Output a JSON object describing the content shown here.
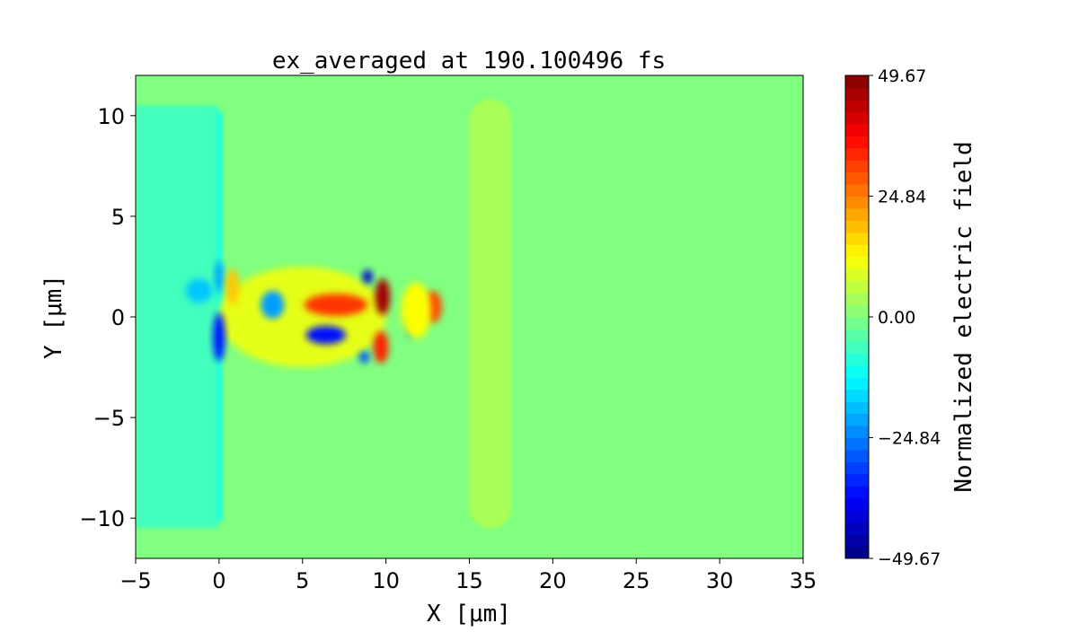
{
  "chart_data": {
    "type": "heatmap",
    "title": "ex_averaged at 190.100496 fs",
    "xlabel": "X [μm]",
    "ylabel": "Y [μm]",
    "xlim": [
      -5,
      35
    ],
    "ylim": [
      -12,
      12
    ],
    "xticks": [
      "−5",
      "0",
      "5",
      "10",
      "15",
      "20",
      "25",
      "30",
      "35"
    ],
    "xtick_values": [
      -5,
      0,
      5,
      10,
      15,
      20,
      25,
      30,
      35
    ],
    "yticks": [
      "10",
      "5",
      "0",
      "−5",
      "−10"
    ],
    "ytick_values": [
      10,
      5,
      0,
      -5,
      -10
    ],
    "colormap": "jet",
    "colorbar": {
      "label": "Normalized electric field",
      "range": [
        -49.67,
        49.67
      ],
      "ticks": [
        "49.67",
        "24.84",
        "0.00",
        "−24.84",
        "−49.67"
      ],
      "tick_values": [
        49.67,
        24.84,
        0,
        -24.84,
        -49.67
      ]
    },
    "background_value": 0,
    "features": [
      {
        "name": "left-wake",
        "x": [
          -5,
          0
        ],
        "y": [
          -10.5,
          10.5
        ],
        "value": -6
      },
      {
        "name": "slab",
        "x": [
          15,
          17.5
        ],
        "y": [
          -10.5,
          10.8
        ],
        "value": 4
      },
      {
        "name": "front-line",
        "x": [
          -0.2,
          0.2
        ],
        "y": [
          -10.2,
          10.2
        ],
        "value": -9
      },
      {
        "name": "core-positive",
        "cx": 5,
        "cy": 0,
        "rx": 5,
        "ry": 2.5,
        "value": 10
      },
      {
        "name": "blob",
        "cx": 0,
        "cy": -1,
        "rx": 0.35,
        "ry": 1.2,
        "value": -36
      },
      {
        "name": "blob",
        "cx": 0,
        "cy": 2.0,
        "rx": 0.25,
        "ry": 0.8,
        "value": -22
      },
      {
        "name": "blob",
        "cx": -1.2,
        "cy": 1.3,
        "rx": 0.8,
        "ry": 0.6,
        "value": -18
      },
      {
        "name": "blob",
        "cx": 0.8,
        "cy": 1.5,
        "rx": 0.4,
        "ry": 0.9,
        "value": 18
      },
      {
        "name": "blob",
        "cx": 3.2,
        "cy": 0.6,
        "rx": 0.7,
        "ry": 0.7,
        "value": -22
      },
      {
        "name": "blob",
        "cx": 7,
        "cy": 0.6,
        "rx": 1.9,
        "ry": 0.55,
        "value": 32
      },
      {
        "name": "blob",
        "cx": 9.8,
        "cy": 1.0,
        "rx": 0.45,
        "ry": 0.9,
        "value": 46
      },
      {
        "name": "blob",
        "cx": 9.7,
        "cy": -1.5,
        "rx": 0.45,
        "ry": 0.8,
        "value": 34
      },
      {
        "name": "blob",
        "cx": 8.9,
        "cy": 2.0,
        "rx": 0.3,
        "ry": 0.35,
        "value": -42
      },
      {
        "name": "blob",
        "cx": 6.4,
        "cy": -0.9,
        "rx": 1.2,
        "ry": 0.45,
        "value": -36
      },
      {
        "name": "blob",
        "cx": 8.7,
        "cy": -2.0,
        "rx": 0.3,
        "ry": 0.3,
        "value": -30
      },
      {
        "name": "blob",
        "cx": 11.5,
        "cy": -0.5,
        "rx": 0.3,
        "ry": 0.6,
        "value": -20
      },
      {
        "name": "blob",
        "cx": 12.8,
        "cy": 0.5,
        "rx": 0.55,
        "ry": 0.8,
        "value": 30
      },
      {
        "name": "blob",
        "cx": 11.8,
        "cy": 0.3,
        "rx": 0.9,
        "ry": 1.4,
        "value": 12
      }
    ]
  }
}
